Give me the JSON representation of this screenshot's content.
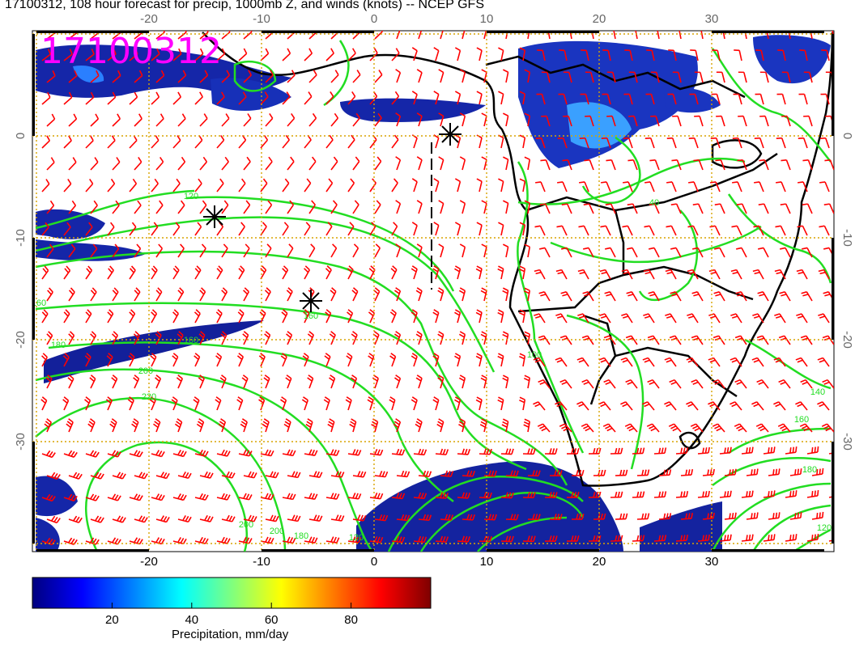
{
  "title": "17100312, 108 hour forecast for precip, 1000mb Z, and winds (knots) -- NCEP GFS",
  "stamp": "17100312",
  "map": {
    "x_ticks": [
      "-20",
      "-10",
      "0",
      "10",
      "20",
      "30"
    ],
    "y_ticks": [
      "0",
      "-10",
      "-20",
      "-30"
    ],
    "contour_labels": [
      "120",
      "160",
      "160",
      "180",
      "160",
      "200",
      "220",
      "200",
      "200",
      "180",
      "120",
      "40",
      "140",
      "160",
      "180",
      "100",
      "120"
    ],
    "colors": {
      "wind_barbs": "#ff0000",
      "contours": "#22dd22",
      "coastlines": "#000000",
      "grid": "#d9a400",
      "stamp": "#ff00ff"
    },
    "markers": [
      "asterisk",
      "asterisk",
      "asterisk"
    ]
  },
  "colorbar": {
    "ticks": [
      "20",
      "40",
      "60",
      "80"
    ],
    "title": "Precipitation, mm/day",
    "range": [
      0,
      100
    ],
    "colors": [
      "#00007f",
      "#0000ff",
      "#007fff",
      "#00ffff",
      "#7fff7f",
      "#ffff00",
      "#ff7f00",
      "#ff0000",
      "#7f0000"
    ]
  }
}
